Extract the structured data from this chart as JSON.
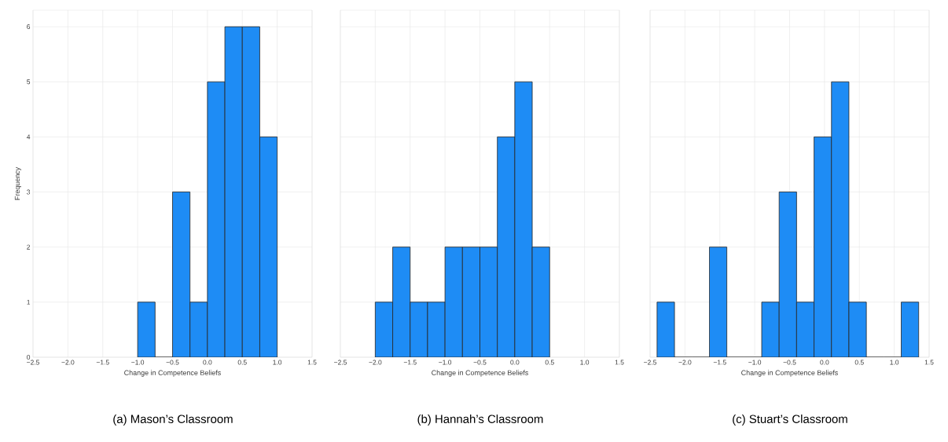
{
  "chart_data": [
    {
      "type": "histogram",
      "title": "(a) Mason’s Classroom",
      "xlabel": "Change in Competence Beliefs",
      "ylabel": "Frequency",
      "bins": [
        -1.0,
        -0.75,
        -0.5,
        -0.25,
        0.0,
        0.25,
        0.5,
        0.75,
        1.0
      ],
      "values": [
        1,
        0,
        3,
        1,
        5,
        6,
        6,
        4
      ],
      "color": "#1e8cf5",
      "xlim": [
        -2.5,
        1.5
      ],
      "ylim": [
        0,
        6.3
      ],
      "xticks": [
        {
          "value": -2.5,
          "label": "−2.5"
        },
        {
          "value": -2.0,
          "label": "−2.0"
        },
        {
          "value": -1.5,
          "label": "−1.5"
        },
        {
          "value": -1.0,
          "label": "−1.0"
        },
        {
          "value": -0.5,
          "label": "−0.5"
        },
        {
          "value": 0,
          "label": "0.0"
        },
        {
          "value": 0.5,
          "label": "0.5"
        },
        {
          "value": 1.0,
          "label": "1.0"
        },
        {
          "value": 1.5,
          "label": "1.5"
        }
      ],
      "yticks": [
        0,
        1,
        2,
        3,
        4,
        5,
        6
      ],
      "grid": true
    },
    {
      "type": "histogram",
      "title": "(b) Hannah’s Classroom",
      "xlabel": "Change in Competence Beliefs",
      "bins": [
        -2.0,
        -1.75,
        -1.5,
        -1.25,
        -1.0,
        -0.75,
        -0.5,
        -0.25,
        0.0,
        0.25,
        0.5
      ],
      "values": [
        1,
        2,
        1,
        1,
        2,
        2,
        2,
        4,
        5,
        2
      ],
      "color": "#1e8cf5",
      "xlim": [
        -2.5,
        1.5
      ],
      "ylim": [
        0,
        6.3
      ],
      "xticks": [
        {
          "value": -2.5,
          "label": "−2.5"
        },
        {
          "value": -2.0,
          "label": "−2.0"
        },
        {
          "value": -1.5,
          "label": "−1.5"
        },
        {
          "value": -1.0,
          "label": "−1.0"
        },
        {
          "value": -0.5,
          "label": "−0.5"
        },
        {
          "value": 0,
          "label": "0.0"
        },
        {
          "value": 0.5,
          "label": "0.5"
        },
        {
          "value": 1.0,
          "label": "1.0"
        },
        {
          "value": 1.5,
          "label": "1.5"
        }
      ],
      "yticks": [
        0,
        1,
        2,
        3,
        4,
        5,
        6
      ],
      "grid": true,
      "tick_labels": "x"
    },
    {
      "type": "histogram",
      "title": "(c) Stuart’s Classroom",
      "xlabel": "Change in Competence Beliefs",
      "bins": [
        -2.4,
        -2.15,
        -1.9,
        -1.65,
        -1.4,
        -1.15,
        -0.9,
        -0.65,
        -0.4,
        -0.15,
        0.1,
        0.35,
        0.6,
        0.85,
        1.1,
        1.35
      ],
      "values": [
        1,
        0,
        0,
        2,
        0,
        0,
        1,
        3,
        1,
        4,
        5,
        1,
        0,
        0,
        1
      ],
      "color": "#1e8cf5",
      "xlim": [
        -2.5,
        1.5
      ],
      "ylim": [
        0,
        6.3
      ],
      "xticks": [
        {
          "value": -2.5,
          "label": "−2.5"
        },
        {
          "value": -2.0,
          "label": "−2.0"
        },
        {
          "value": -1.5,
          "label": "−1.5"
        },
        {
          "value": -1.0,
          "label": "−1.0"
        },
        {
          "value": -0.5,
          "label": "−0.5"
        },
        {
          "value": 0,
          "label": "0.0"
        },
        {
          "value": 0.5,
          "label": "0.5"
        },
        {
          "value": 1.0,
          "label": "1.0"
        },
        {
          "value": 1.5,
          "label": "1.5"
        }
      ],
      "yticks": [
        0,
        1,
        2,
        3,
        4,
        5,
        6
      ],
      "grid": true,
      "tick_labels": "x"
    }
  ]
}
